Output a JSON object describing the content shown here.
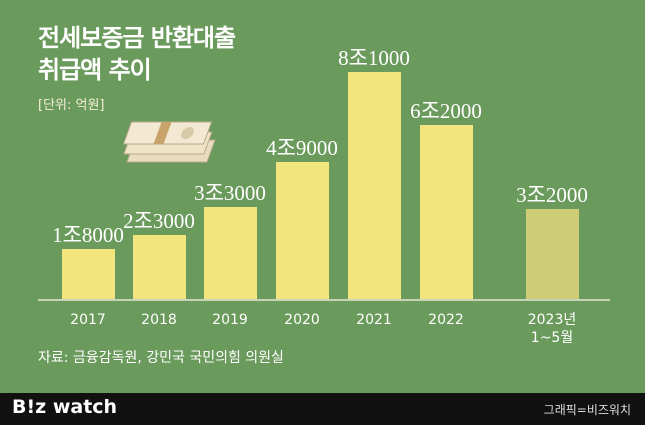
{
  "chart_data": {
    "type": "bar",
    "title": "전세보증금 반환대출\n취급액 추이",
    "unit": "[단위: 억원]",
    "source": "자료: 금융감독원, 강민국 국민의힘 의원실",
    "categories": [
      "2017",
      "2018",
      "2019",
      "2020",
      "2021",
      "2022",
      "2023년\n1~5월"
    ],
    "values": [
      18000,
      23000,
      33000,
      49000,
      81000,
      62000,
      32000
    ],
    "value_labels": [
      "1조8000",
      "2조3000",
      "3조3000",
      "4조9000",
      "8조1000",
      "6조2000",
      "3조2000"
    ],
    "colors": [
      "#f3e57e",
      "#f3e57e",
      "#f3e57e",
      "#f3e57e",
      "#f3e57e",
      "#f3e57e",
      "#cfcc76"
    ]
  },
  "footer": {
    "logo": "B!z watch",
    "credit": "그래픽=비즈워치"
  }
}
